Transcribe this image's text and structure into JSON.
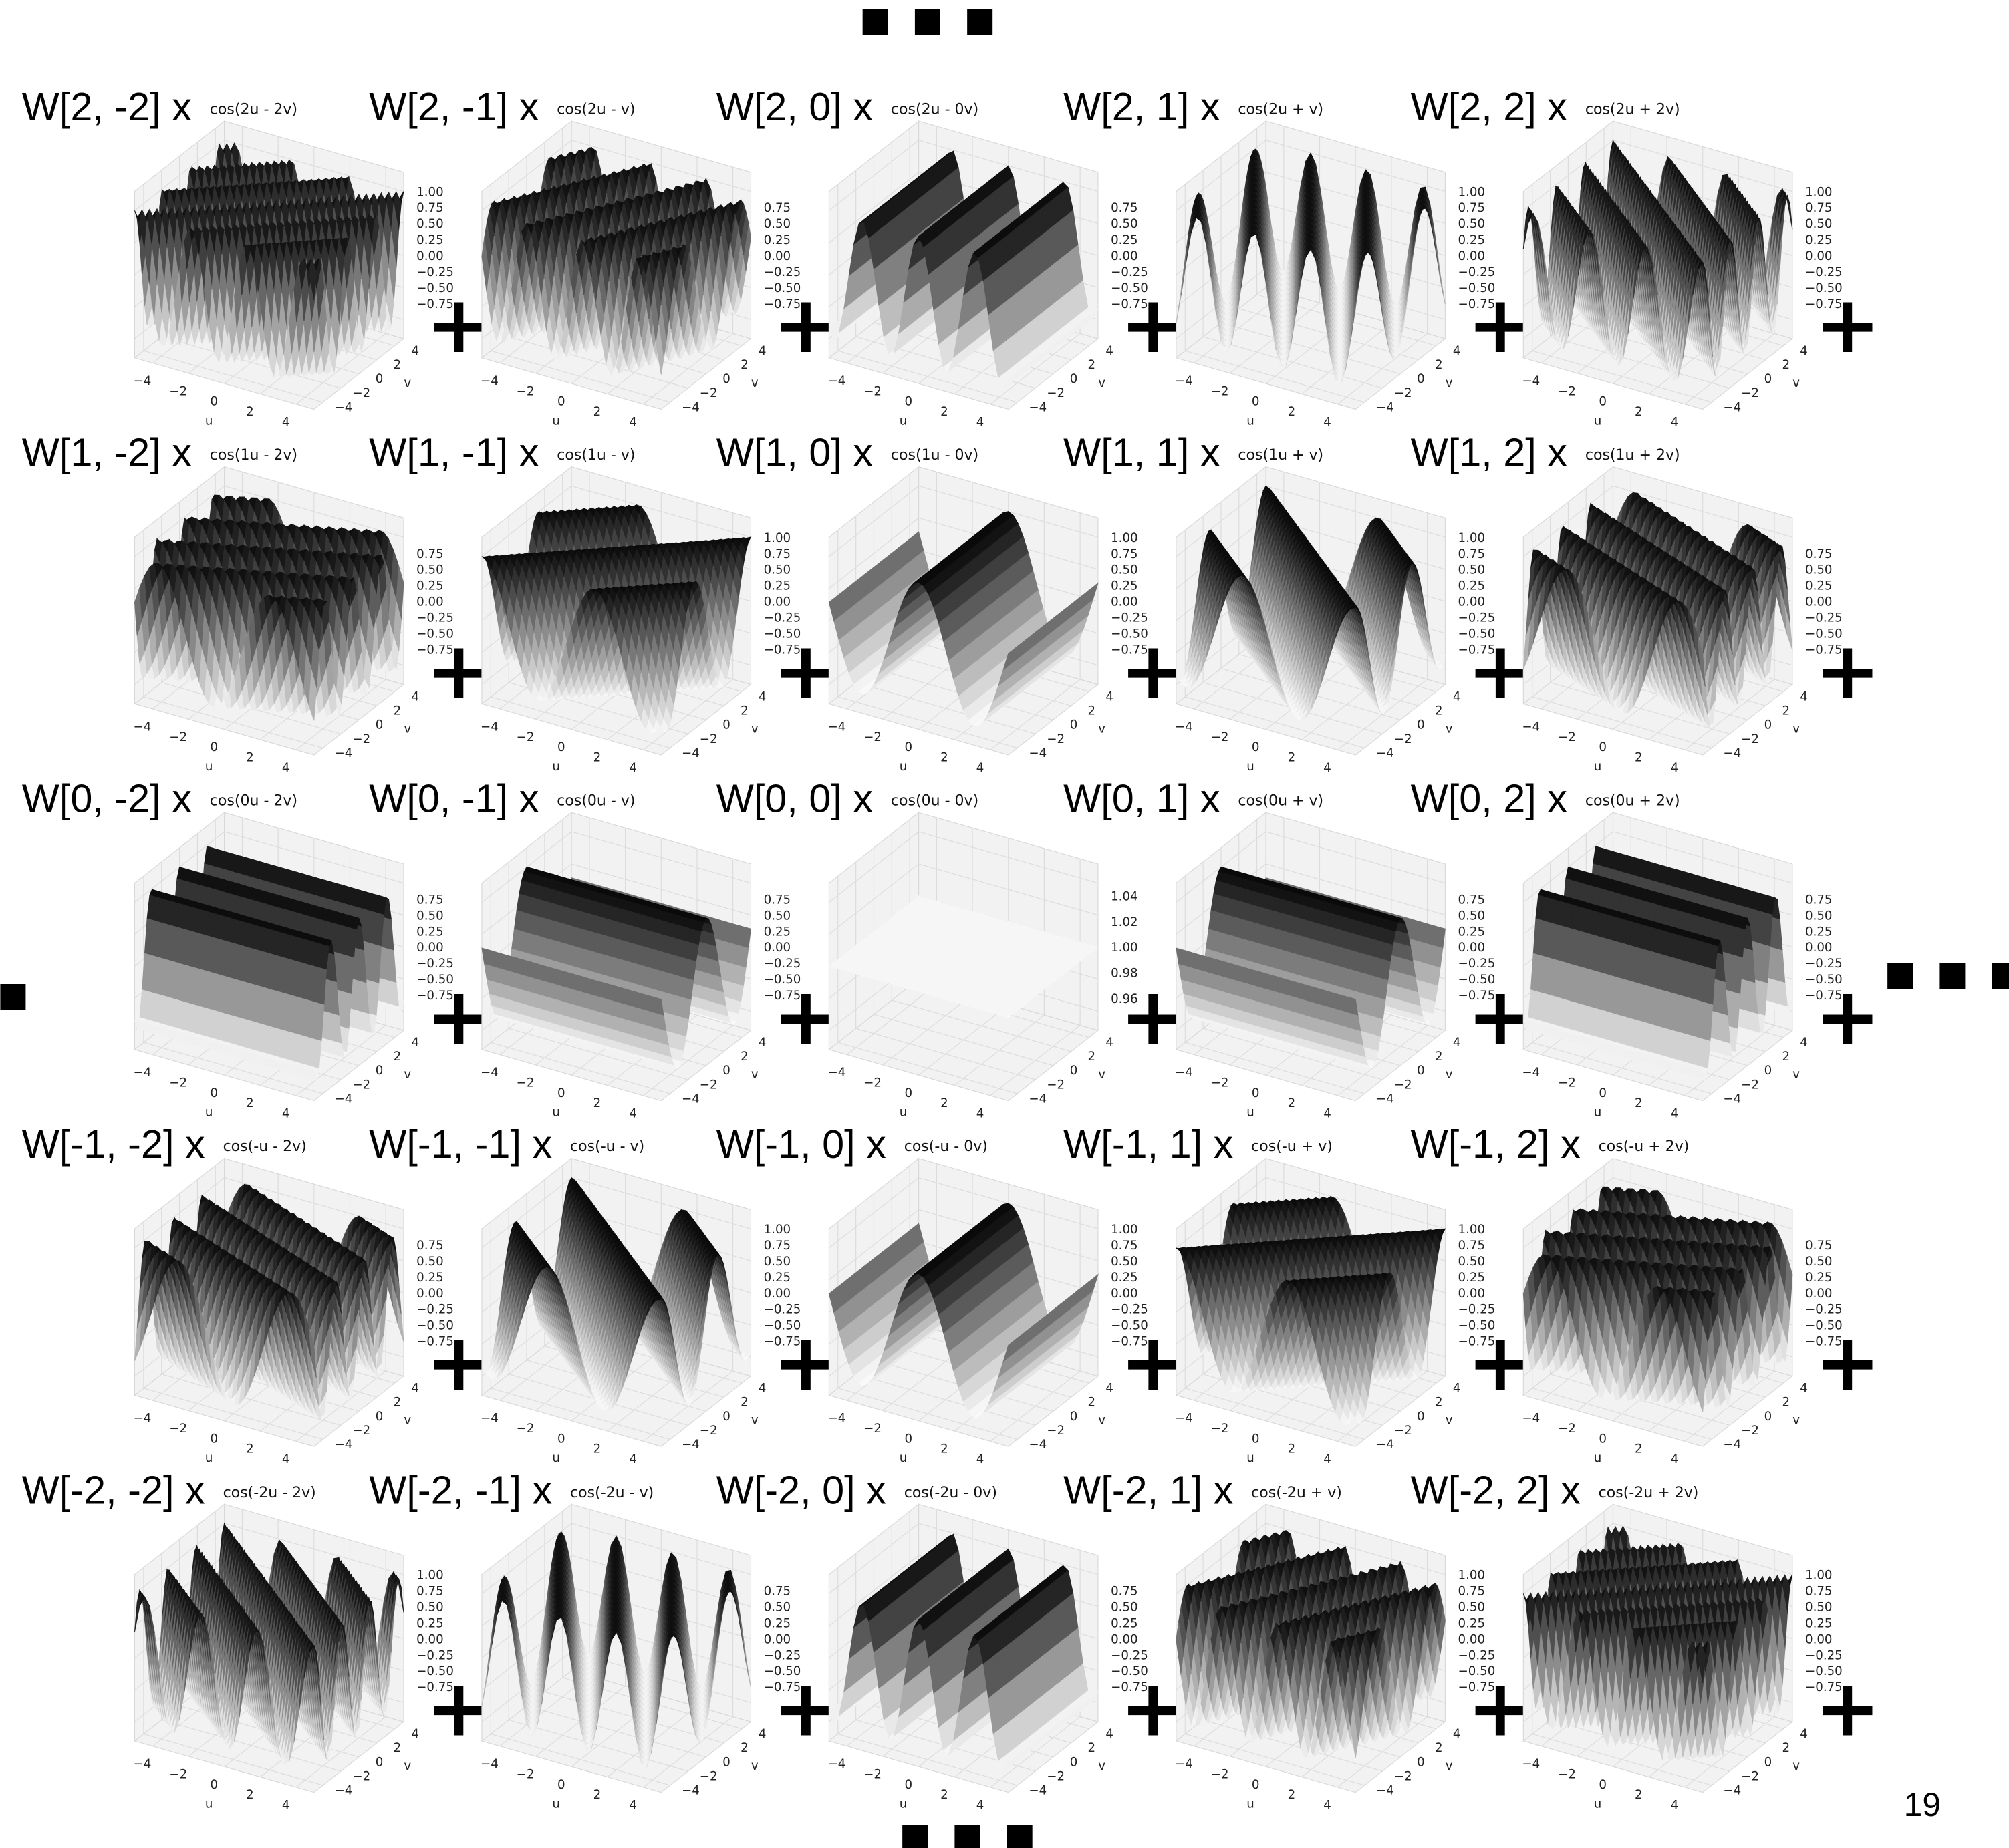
{
  "ellipsis_top": "■ ■ ■",
  "ellipsis_left": "■",
  "ellipsis_right": "■ ■ ■",
  "ellipsis_bottom": "■ ■ ■",
  "operator": "+",
  "page_number": "19",
  "axes": {
    "u_label": "u",
    "v_label": "v",
    "u_ticks": [
      "−4",
      "−2",
      "0",
      "2",
      "4"
    ],
    "v_ticks": [
      "−4",
      "−2",
      "0",
      "2",
      "4"
    ]
  },
  "panels": [
    [
      {
        "label": "W[2, -2] x",
        "formula": "cos(2u - 2v)",
        "zticks": [
          "1.00",
          "0.75",
          "0.50",
          "0.25",
          "0.00",
          "−0.25",
          "−0.50",
          "−0.75"
        ]
      },
      {
        "label": "W[2, -1] x",
        "formula": "cos(2u - v)",
        "zticks": [
          "0.75",
          "0.50",
          "0.25",
          "0.00",
          "−0.25",
          "−0.50",
          "−0.75"
        ]
      },
      {
        "label": "W[2, 0] x",
        "formula": "cos(2u - 0v)",
        "zticks": [
          "0.75",
          "0.50",
          "0.25",
          "0.00",
          "−0.25",
          "−0.50",
          "−0.75"
        ]
      },
      {
        "label": "W[2, 1] x",
        "formula": "cos(2u + v)",
        "zticks": [
          "1.00",
          "0.75",
          "0.50",
          "0.25",
          "0.00",
          "−0.25",
          "−0.50",
          "−0.75"
        ]
      },
      {
        "label": "W[2, 2] x",
        "formula": "cos(2u + 2v)",
        "zticks": [
          "1.00",
          "0.75",
          "0.50",
          "0.25",
          "0.00",
          "−0.25",
          "−0.50",
          "−0.75"
        ]
      }
    ],
    [
      {
        "label": "W[1, -2] x",
        "formula": "cos(1u - 2v)",
        "zticks": [
          "0.75",
          "0.50",
          "0.25",
          "0.00",
          "−0.25",
          "−0.50",
          "−0.75"
        ]
      },
      {
        "label": "W[1, -1] x",
        "formula": "cos(1u - v)",
        "zticks": [
          "1.00",
          "0.75",
          "0.50",
          "0.25",
          "0.00",
          "−0.25",
          "−0.50",
          "−0.75"
        ]
      },
      {
        "label": "W[1, 0] x",
        "formula": "cos(1u - 0v)",
        "zticks": [
          "1.00",
          "0.75",
          "0.50",
          "0.25",
          "0.00",
          "−0.25",
          "−0.50",
          "−0.75"
        ]
      },
      {
        "label": "W[1, 1] x",
        "formula": "cos(1u + v)",
        "zticks": [
          "1.00",
          "0.75",
          "0.50",
          "0.25",
          "0.00",
          "−0.25",
          "−0.50",
          "−0.75"
        ]
      },
      {
        "label": "W[1, 2] x",
        "formula": "cos(1u + 2v)",
        "zticks": [
          "0.75",
          "0.50",
          "0.25",
          "0.00",
          "−0.25",
          "−0.50",
          "−0.75"
        ]
      }
    ],
    [
      {
        "label": "W[0, -2] x",
        "formula": "cos(0u - 2v)",
        "zticks": [
          "0.75",
          "0.50",
          "0.25",
          "0.00",
          "−0.25",
          "−0.50",
          "−0.75"
        ]
      },
      {
        "label": "W[0, -1] x",
        "formula": "cos(0u - v)",
        "zticks": [
          "0.75",
          "0.50",
          "0.25",
          "0.00",
          "−0.25",
          "−0.50",
          "−0.75"
        ]
      },
      {
        "label": "W[0, 0] x",
        "formula": "cos(0u - 0v)",
        "zticks": [
          "1.04",
          "1.02",
          "1.00",
          "0.98",
          "0.96"
        ]
      },
      {
        "label": "W[0, 1] x",
        "formula": "cos(0u + v)",
        "zticks": [
          "0.75",
          "0.50",
          "0.25",
          "0.00",
          "−0.25",
          "−0.50",
          "−0.75"
        ]
      },
      {
        "label": "W[0, 2] x",
        "formula": "cos(0u + 2v)",
        "zticks": [
          "0.75",
          "0.50",
          "0.25",
          "0.00",
          "−0.25",
          "−0.50",
          "−0.75"
        ]
      }
    ],
    [
      {
        "label": "W[-1, -2] x",
        "formula": "cos(-u - 2v)",
        "zticks": [
          "0.75",
          "0.50",
          "0.25",
          "0.00",
          "−0.25",
          "−0.50",
          "−0.75"
        ]
      },
      {
        "label": "W[-1, -1] x",
        "formula": "cos(-u - v)",
        "zticks": [
          "1.00",
          "0.75",
          "0.50",
          "0.25",
          "0.00",
          "−0.25",
          "−0.50",
          "−0.75"
        ]
      },
      {
        "label": "W[-1, 0] x",
        "formula": "cos(-u - 0v)",
        "zticks": [
          "1.00",
          "0.75",
          "0.50",
          "0.25",
          "0.00",
          "−0.25",
          "−0.50",
          "−0.75"
        ]
      },
      {
        "label": "W[-1, 1] x",
        "formula": "cos(-u + v)",
        "zticks": [
          "1.00",
          "0.75",
          "0.50",
          "0.25",
          "0.00",
          "−0.25",
          "−0.50",
          "−0.75"
        ]
      },
      {
        "label": "W[-1, 2] x",
        "formula": "cos(-u + 2v)",
        "zticks": [
          "0.75",
          "0.50",
          "0.25",
          "0.00",
          "−0.25",
          "−0.50",
          "−0.75"
        ]
      }
    ],
    [
      {
        "label": "W[-2, -2] x",
        "formula": "cos(-2u - 2v)",
        "zticks": [
          "1.00",
          "0.75",
          "0.50",
          "0.25",
          "0.00",
          "−0.25",
          "−0.50",
          "−0.75"
        ]
      },
      {
        "label": "W[-2, -1] x",
        "formula": "cos(-2u - v)",
        "zticks": [
          "0.75",
          "0.50",
          "0.25",
          "0.00",
          "−0.25",
          "−0.50",
          "−0.75"
        ]
      },
      {
        "label": "W[-2, 0] x",
        "formula": "cos(-2u - 0v)",
        "zticks": [
          "0.75",
          "0.50",
          "0.25",
          "0.00",
          "−0.25",
          "−0.50",
          "−0.75"
        ]
      },
      {
        "label": "W[-2, 1] x",
        "formula": "cos(-2u + v)",
        "zticks": [
          "1.00",
          "0.75",
          "0.50",
          "0.25",
          "0.00",
          "−0.25",
          "−0.50",
          "−0.75"
        ]
      },
      {
        "label": "W[-2, 2] x",
        "formula": "cos(-2u + 2v)",
        "zticks": [
          "1.00",
          "0.75",
          "0.50",
          "0.25",
          "0.00",
          "−0.25",
          "−0.50",
          "−0.75"
        ]
      }
    ]
  ]
}
